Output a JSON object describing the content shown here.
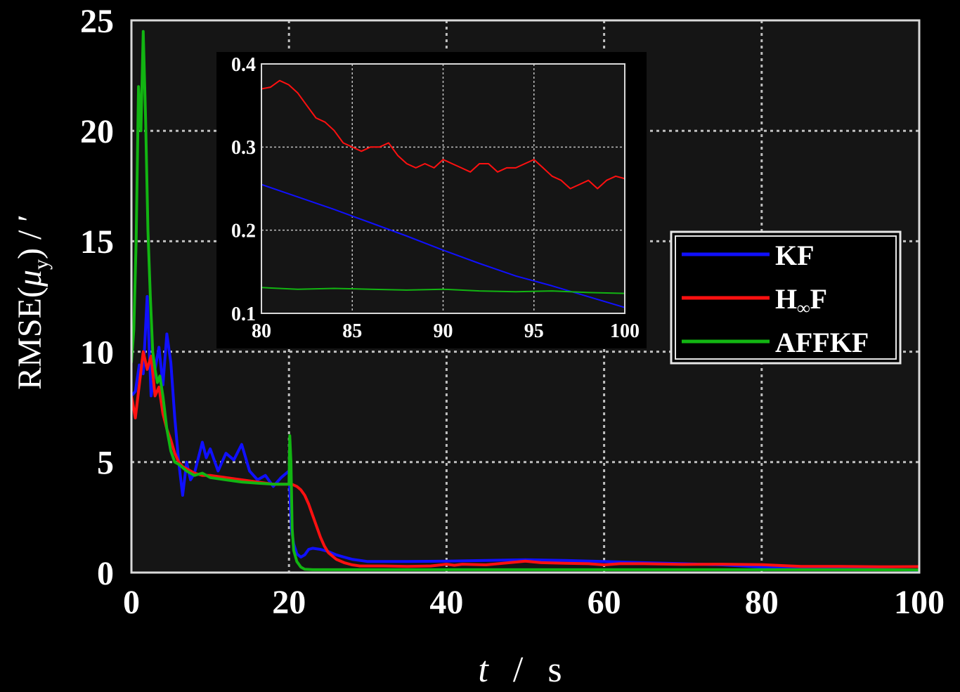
{
  "chart_data": [
    {
      "type": "line",
      "xlabel_italic": "t",
      "xlabel_sep": "/",
      "xlabel_unit": "s",
      "ylabel_base": "RMSE(",
      "ylabel_mu": "μ",
      "ylabel_sub": "y",
      "ylabel_tail": ")  /  ′",
      "xlim": [
        0,
        100
      ],
      "ylim": [
        0,
        25
      ],
      "xticks": [
        0,
        20,
        40,
        60,
        80,
        100
      ],
      "yticks": [
        0,
        5,
        10,
        15,
        20,
        25
      ],
      "grid": true,
      "legend_position": "right",
      "legend": [
        {
          "key": "KF",
          "label": "KF",
          "color": "#1010ff"
        },
        {
          "key": "HF",
          "label": "H",
          "sub": "∞",
          "tail": "F",
          "color": "#ff1010"
        },
        {
          "key": "AFFKF",
          "label": "AFFKF",
          "color": "#12b512"
        }
      ],
      "series": [
        {
          "name": "KF",
          "color": "#1010ff",
          "x": [
            0,
            0.5,
            1,
            1.5,
            2,
            2.5,
            3,
            3.5,
            4,
            4.5,
            5,
            5.5,
            6,
            6.5,
            7,
            7.5,
            8,
            8.5,
            9,
            9.5,
            10,
            11,
            12,
            13,
            14,
            15,
            16,
            17,
            18,
            19,
            20,
            20.3,
            20.6,
            21,
            21.5,
            22,
            22.5,
            23,
            24,
            25,
            26,
            27,
            28,
            29,
            30,
            32,
            35,
            40,
            45,
            50,
            55,
            60,
            65,
            70,
            75,
            80,
            85,
            90,
            95,
            100
          ],
          "y": [
            8.0,
            8.2,
            9.4,
            9.0,
            12.5,
            8.0,
            9.2,
            10.2,
            8.5,
            10.8,
            9.5,
            7.0,
            5.0,
            3.5,
            5.0,
            4.2,
            4.5,
            5.2,
            5.9,
            5.2,
            5.6,
            4.6,
            5.4,
            5.1,
            5.8,
            4.6,
            4.2,
            4.4,
            3.9,
            4.3,
            4.6,
            2.0,
            1.3,
            0.85,
            0.7,
            0.8,
            1.05,
            1.1,
            1.05,
            0.95,
            0.8,
            0.7,
            0.6,
            0.55,
            0.5,
            0.5,
            0.5,
            0.52,
            0.55,
            0.58,
            0.55,
            0.5,
            0.45,
            0.4,
            0.35,
            0.25,
            0.21,
            0.18,
            0.14,
            0.11
          ]
        },
        {
          "name": "H∞F",
          "color": "#ff1010",
          "x": [
            0,
            0.5,
            1,
            1.5,
            2,
            2.5,
            3,
            3.5,
            4,
            4.5,
            5,
            5.5,
            6,
            6.5,
            7,
            8,
            9,
            10,
            12,
            14,
            16,
            18,
            19,
            20,
            20.5,
            21,
            21.5,
            22,
            22.5,
            23,
            23.5,
            24,
            24.5,
            25,
            26,
            27,
            28,
            29,
            30,
            32,
            35,
            38,
            40,
            41,
            42,
            45,
            48,
            50,
            52,
            55,
            58,
            60,
            62,
            65,
            70,
            75,
            80,
            85,
            90,
            95,
            100
          ],
          "y": [
            8.0,
            7.0,
            8.5,
            10.0,
            9.2,
            9.8,
            8.0,
            8.4,
            7.2,
            6.5,
            6.0,
            5.4,
            5.0,
            4.8,
            4.7,
            4.5,
            4.4,
            4.4,
            4.3,
            4.2,
            4.1,
            4.0,
            4.0,
            4.0,
            3.98,
            3.9,
            3.75,
            3.5,
            3.1,
            2.6,
            2.1,
            1.6,
            1.2,
            0.9,
            0.6,
            0.45,
            0.35,
            0.3,
            0.3,
            0.3,
            0.28,
            0.3,
            0.38,
            0.33,
            0.38,
            0.35,
            0.45,
            0.52,
            0.45,
            0.42,
            0.4,
            0.35,
            0.4,
            0.4,
            0.37,
            0.38,
            0.36,
            0.28,
            0.28,
            0.26,
            0.27
          ]
        },
        {
          "name": "AFFKF",
          "color": "#12b512",
          "x": [
            0,
            0.3,
            0.6,
            0.9,
            1.2,
            1.5,
            1.8,
            2.1,
            2.4,
            2.7,
            3,
            3.3,
            3.6,
            4,
            4.5,
            5,
            5.5,
            6,
            7,
            8,
            9,
            10,
            12,
            14,
            16,
            18,
            20,
            20.1,
            20.25,
            20.4,
            20.6,
            21,
            21.5,
            22,
            23,
            25,
            30,
            40,
            50,
            60,
            70,
            80,
            90,
            100
          ],
          "y": [
            9.5,
            11.0,
            15.0,
            22.0,
            20.0,
            24.5,
            20.5,
            15.5,
            12.5,
            10.0,
            9.2,
            8.6,
            8.9,
            8.0,
            6.5,
            5.5,
            5.0,
            4.9,
            4.6,
            4.4,
            4.5,
            4.3,
            4.2,
            4.1,
            4.05,
            4.0,
            4.0,
            6.2,
            5.0,
            2.0,
            1.0,
            0.5,
            0.25,
            0.15,
            0.13,
            0.13,
            0.13,
            0.13,
            0.13,
            0.13,
            0.13,
            0.13,
            0.13,
            0.12
          ]
        }
      ]
    },
    {
      "type": "line",
      "inset": true,
      "xlim": [
        80,
        100
      ],
      "ylim": [
        0.1,
        0.4
      ],
      "xticks": [
        80,
        85,
        90,
        95,
        100
      ],
      "yticks": [
        0.1,
        0.2,
        0.3,
        0.4
      ],
      "xticklabels": [
        "80",
        "85",
        "90",
        "95",
        "100"
      ],
      "yticklabels": [
        "0.1",
        "0.2",
        "0.3",
        "0.4"
      ],
      "grid": true,
      "series": [
        {
          "name": "KF",
          "color": "#1010ff",
          "x": [
            80,
            82,
            84,
            86,
            88,
            90,
            92,
            94,
            96,
            98,
            100
          ],
          "y": [
            0.255,
            0.24,
            0.225,
            0.209,
            0.193,
            0.176,
            0.16,
            0.145,
            0.133,
            0.12,
            0.107
          ]
        },
        {
          "name": "H∞F",
          "color": "#ff1010",
          "x": [
            80,
            80.5,
            81,
            81.5,
            82,
            82.5,
            83,
            83.5,
            84,
            84.5,
            85,
            85.5,
            86,
            86.5,
            87,
            87.5,
            88,
            88.5,
            89,
            89.5,
            90,
            90.5,
            91,
            91.5,
            92,
            92.5,
            93,
            93.5,
            94,
            94.5,
            95,
            95.5,
            96,
            96.5,
            97,
            97.5,
            98,
            98.5,
            99,
            99.5,
            100
          ],
          "y": [
            0.37,
            0.372,
            0.38,
            0.375,
            0.365,
            0.35,
            0.335,
            0.33,
            0.32,
            0.305,
            0.3,
            0.295,
            0.3,
            0.3,
            0.305,
            0.29,
            0.28,
            0.275,
            0.28,
            0.275,
            0.285,
            0.28,
            0.275,
            0.27,
            0.28,
            0.28,
            0.27,
            0.275,
            0.275,
            0.28,
            0.285,
            0.275,
            0.265,
            0.26,
            0.25,
            0.255,
            0.26,
            0.25,
            0.26,
            0.265,
            0.262
          ]
        },
        {
          "name": "AFFKF",
          "color": "#12b512",
          "x": [
            80,
            82,
            84,
            86,
            88,
            90,
            92,
            94,
            96,
            98,
            100
          ],
          "y": [
            0.131,
            0.129,
            0.13,
            0.129,
            0.128,
            0.129,
            0.127,
            0.126,
            0.127,
            0.125,
            0.124
          ]
        }
      ]
    }
  ]
}
